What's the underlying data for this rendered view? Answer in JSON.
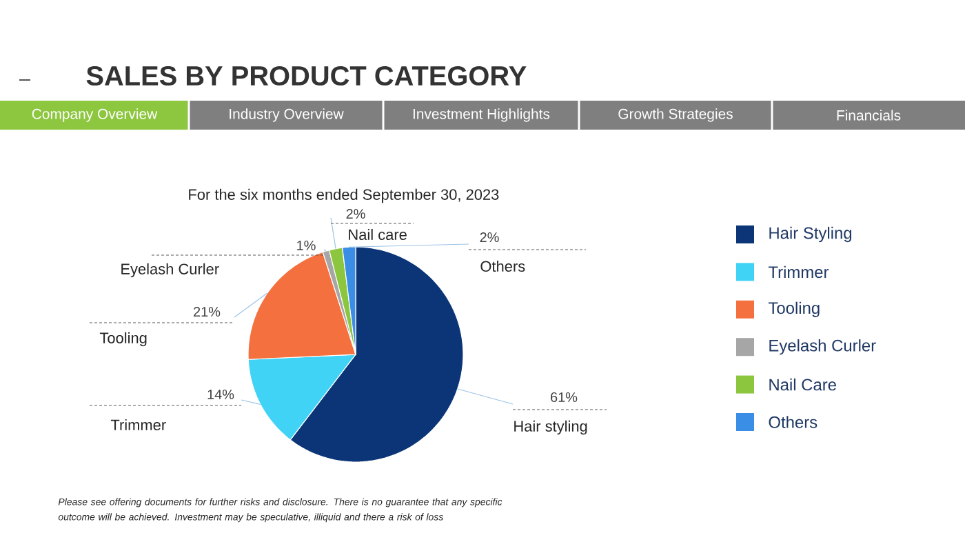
{
  "chart_data": {
    "type": "pie",
    "title": "SALES BY PRODUCT CATEGORY",
    "subtitle": "For the six months ended September 30, 2023",
    "categories": [
      "Hair Styling",
      "Trimmer",
      "Tooling",
      "Eyelash Curler",
      "Nail Care",
      "Others"
    ],
    "values": [
      61,
      14,
      21,
      1,
      2,
      2
    ],
    "value_labels": [
      "61%",
      "14%",
      "21%",
      "1%",
      "2%",
      "2%"
    ],
    "colors": [
      "#0b3577",
      "#40d3f5",
      "#f4703f",
      "#a6a6a6",
      "#8cc63f",
      "#3a8ee6"
    ],
    "legend": "right",
    "annotations": [
      "Hair styling",
      "Trimmer",
      "Tooling",
      "Eyelash Curler",
      "Nail care",
      "Others",
      "Company Overview",
      "Industry Overview",
      "Investment Highlights",
      "Growth Strategies",
      "Financials",
      "Please see offering documents for further risks and disclosure. There is no guarantee that any specific outcome will be achieved. Investment may be speculative, illiquid and there a risk of loss"
    ]
  }
}
